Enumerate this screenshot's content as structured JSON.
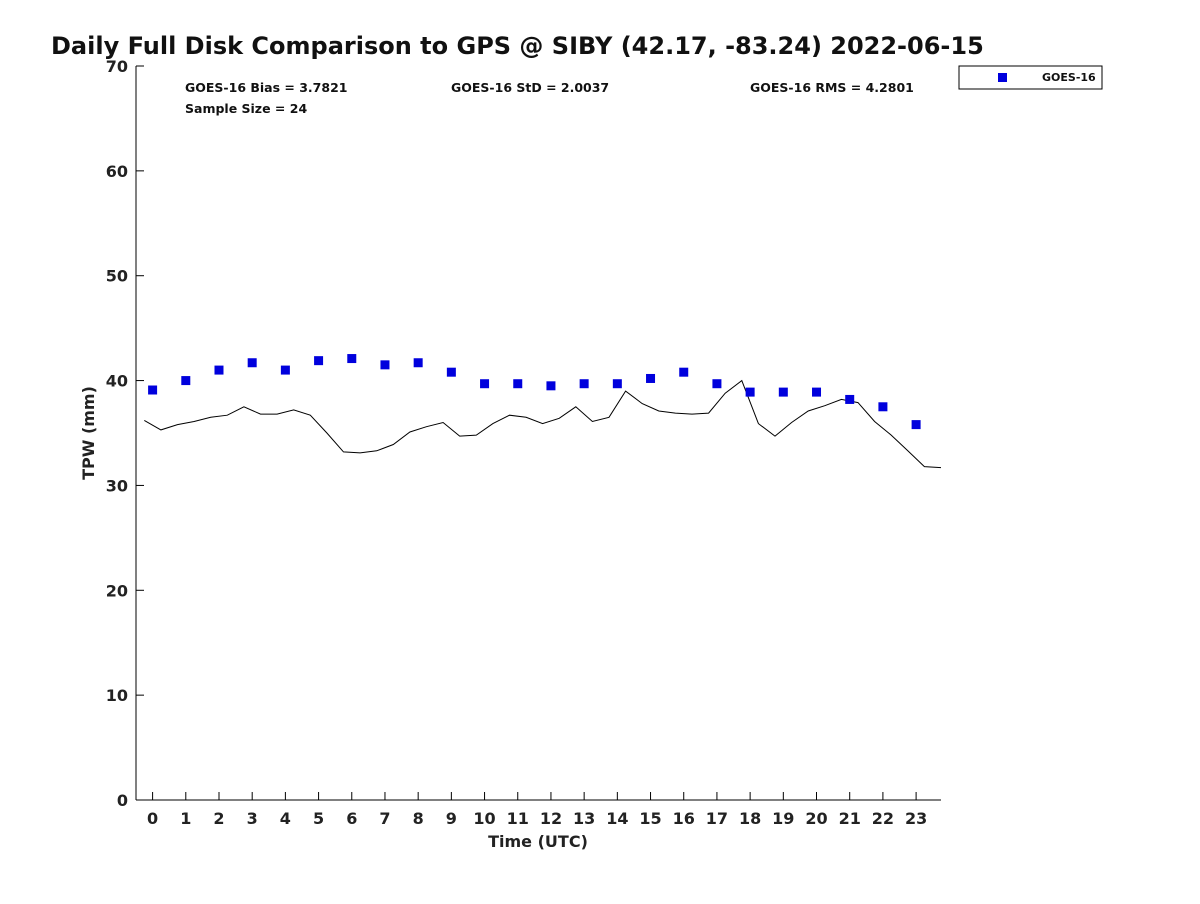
{
  "chart_data": {
    "type": "scatter",
    "title": "Daily Full Disk Comparison to GPS @ SIBY (42.17, -83.24) 2022-06-15",
    "xlabel": "Time (UTC)",
    "ylabel": "TPW (mm)",
    "xlim": [
      -0.5,
      23.75
    ],
    "ylim": [
      0,
      70
    ],
    "x_ticks": [
      0,
      1,
      2,
      3,
      4,
      5,
      6,
      7,
      8,
      9,
      10,
      11,
      12,
      13,
      14,
      15,
      16,
      17,
      18,
      19,
      20,
      21,
      22,
      23
    ],
    "y_ticks": [
      0,
      10,
      20,
      30,
      40,
      50,
      60,
      70
    ],
    "grid": false,
    "legend_position": "top-right (outside plot)",
    "stats": {
      "bias": "GOES-16 Bias = 3.7821",
      "std": "GOES-16 StD = 2.0037",
      "rms": "GOES-16 RMS = 4.2801",
      "sample": "Sample Size = 24"
    },
    "series": [
      {
        "name": "GOES-16",
        "kind": "markers",
        "color": "#0000dd",
        "x": [
          0,
          1,
          2,
          3,
          4,
          5,
          6,
          7,
          8,
          9,
          10,
          11,
          12,
          13,
          14,
          15,
          16,
          17,
          18,
          19,
          20,
          21,
          22,
          23
        ],
        "y": [
          39.1,
          40.0,
          41.0,
          41.7,
          41.0,
          41.9,
          42.1,
          41.5,
          41.7,
          40.8,
          39.7,
          39.7,
          39.5,
          39.7,
          39.7,
          40.2,
          40.8,
          39.7,
          38.9,
          38.9,
          38.9,
          38.2,
          37.5,
          35.8
        ]
      },
      {
        "kind": "line",
        "color": "#000000",
        "x": [
          -0.25,
          0.25,
          0.75,
          1.25,
          1.75,
          2.25,
          2.75,
          3.25,
          3.75,
          4.25,
          4.75,
          5.25,
          5.75,
          6.25,
          6.75,
          7.25,
          7.75,
          8.25,
          8.75,
          9.25,
          9.75,
          10.25,
          10.75,
          11.25,
          11.75,
          12.25,
          12.75,
          13.25,
          13.75,
          14.25,
          14.75,
          15.25,
          15.75,
          16.25,
          16.75,
          17.25,
          17.75,
          18.25,
          18.75,
          19.25,
          19.75,
          20.25,
          20.75,
          21.25,
          21.75,
          22.25,
          22.75,
          23.25,
          23.75
        ],
        "y": [
          36.2,
          35.3,
          35.8,
          36.1,
          36.5,
          36.7,
          37.5,
          36.8,
          36.8,
          37.2,
          36.7,
          35.0,
          33.2,
          33.1,
          33.3,
          33.9,
          35.1,
          35.6,
          36.0,
          34.7,
          34.8,
          35.9,
          36.7,
          36.5,
          35.9,
          36.4,
          37.5,
          36.1,
          36.5,
          39.0,
          37.8,
          37.1,
          36.9,
          36.8,
          36.9,
          38.8,
          40.0,
          35.9,
          34.7,
          36.0,
          37.1,
          37.6,
          38.2,
          37.9,
          36.1,
          34.8,
          33.3,
          31.8,
          31.7
        ]
      }
    ]
  }
}
